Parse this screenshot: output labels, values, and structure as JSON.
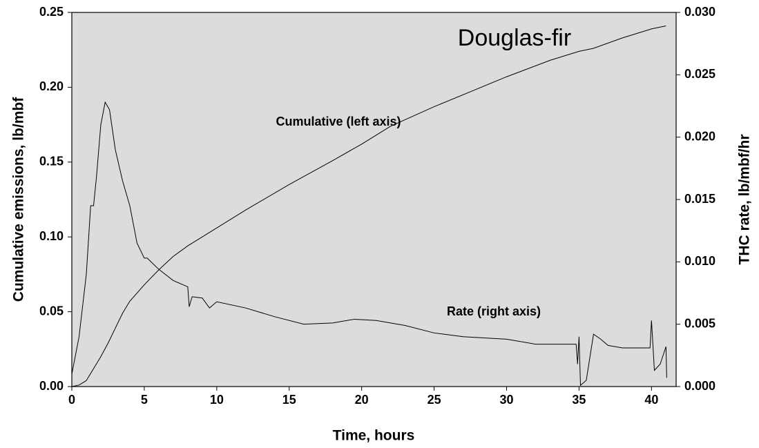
{
  "chart_data": {
    "type": "line",
    "title": "Douglas-fir",
    "x_label": "Time, hours",
    "y_label": "Cumulative emissions, lb/mbf",
    "y2_label": "THC rate, lb/mbf/hr",
    "xlim": [
      0,
      41.7
    ],
    "xticks": [
      0,
      5,
      10,
      15,
      20,
      25,
      30,
      35,
      40
    ],
    "ylim": [
      0,
      0.25
    ],
    "yticks": [
      {
        "value": 0,
        "label": "0.00"
      },
      {
        "value": 0.05,
        "label": "0.05"
      },
      {
        "value": 0.1,
        "label": "0.10"
      },
      {
        "value": 0.15,
        "label": "0.15"
      },
      {
        "value": 0.2,
        "label": "0.20"
      },
      {
        "value": 0.25,
        "label": "0.25"
      }
    ],
    "y2lim": [
      0,
      0.03
    ],
    "y2ticks": [
      {
        "value": 0,
        "label": "0.000"
      },
      {
        "value": 0.005,
        "label": "0.005"
      },
      {
        "value": 0.01,
        "label": "0.010"
      },
      {
        "value": 0.015,
        "label": "0.015"
      },
      {
        "value": 0.02,
        "label": "0.020"
      },
      {
        "value": 0.025,
        "label": "0.025"
      },
      {
        "value": 0.03,
        "label": "0.030"
      }
    ],
    "background": "#dcdcdc",
    "series": [
      {
        "name": "Cumulative (left axis)",
        "color": "#000000",
        "axis": "y",
        "x": [
          0,
          0.5,
          1,
          1.5,
          2,
          2.5,
          3,
          3.5,
          4,
          5,
          6,
          7,
          8,
          10,
          12,
          15,
          18,
          20,
          22,
          25,
          28,
          30,
          33,
          35,
          36,
          38,
          40,
          41
        ],
        "values": [
          0,
          0.001,
          0.004,
          0.012,
          0.02,
          0.029,
          0.039,
          0.049,
          0.057,
          0.068,
          0.078,
          0.087,
          0.094,
          0.106,
          0.118,
          0.135,
          0.151,
          0.162,
          0.174,
          0.187,
          0.199,
          0.207,
          0.218,
          0.224,
          0.226,
          0.233,
          0.239,
          0.241
        ]
      },
      {
        "name": "Rate (right axis)",
        "color": "#000000",
        "axis": "y2",
        "x": [
          0,
          0.5,
          1,
          1.3,
          1.5,
          1.7,
          2,
          2.3,
          2.6,
          3,
          3.5,
          4,
          4.5,
          5,
          5.2,
          6,
          7,
          8,
          8.1,
          8.3,
          9,
          9.5,
          10,
          12,
          14,
          16,
          18,
          19.5,
          21,
          23,
          25,
          27,
          30,
          32,
          34,
          34.8,
          34.9,
          35,
          35.1,
          35.5,
          36,
          36.5,
          37,
          38,
          39,
          39.9,
          40,
          40.2,
          40.6,
          41,
          41.05
        ],
        "values": [
          0.001,
          0.004,
          0.009,
          0.0145,
          0.0145,
          0.0168,
          0.021,
          0.0228,
          0.0222,
          0.019,
          0.0165,
          0.0145,
          0.0115,
          0.0103,
          0.0103,
          0.0094,
          0.0085,
          0.008,
          0.0064,
          0.0072,
          0.0071,
          0.0063,
          0.0068,
          0.0063,
          0.0056,
          0.005,
          0.0051,
          0.0054,
          0.0053,
          0.0049,
          0.0043,
          0.004,
          0.0038,
          0.0034,
          0.0034,
          0.0034,
          0.0018,
          0.004,
          0.0001,
          0.0005,
          0.0042,
          0.0038,
          0.0033,
          0.0031,
          0.0031,
          0.0031,
          0.0053,
          0.0013,
          0.0018,
          0.0032,
          0.0007
        ]
      }
    ]
  }
}
